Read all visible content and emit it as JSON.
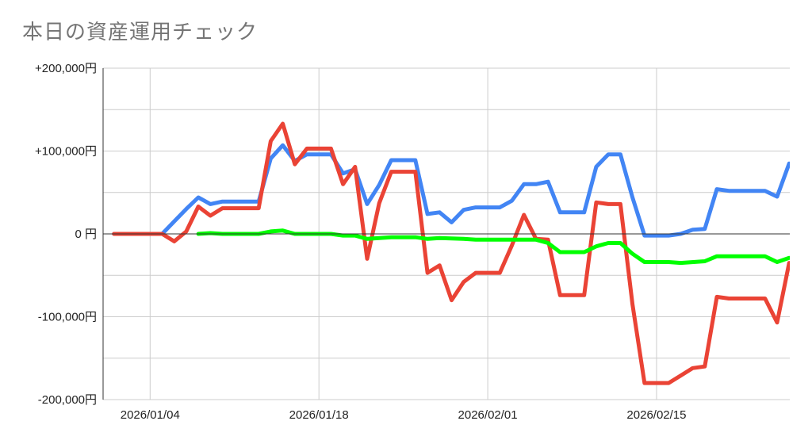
{
  "title": "本日の資産運用チェック",
  "chart_data": {
    "type": "line",
    "title": "本日の資産運用チェック",
    "xlabel": "",
    "ylabel": "",
    "x_start": "2026-01-01",
    "x_end": "2026-02-25",
    "x_ticks": [
      {
        "date": "2026-01-04",
        "label": "2026/01/04"
      },
      {
        "date": "2026-01-18",
        "label": "2026/01/18"
      },
      {
        "date": "2026-02-01",
        "label": "2026/02/01"
      },
      {
        "date": "2026-02-15",
        "label": "2026/02/15"
      }
    ],
    "ylim": [
      -200000,
      200000
    ],
    "y_ticks": [
      {
        "value": 200000,
        "label": "+200,000円"
      },
      {
        "value": 100000,
        "label": "+100,000円"
      },
      {
        "value": 0,
        "label": "0 円"
      },
      {
        "value": -100000,
        "label": "-100,000円"
      },
      {
        "value": -200000,
        "label": "-200,000円"
      }
    ],
    "grid": true,
    "series": [
      {
        "color": "#4285f4",
        "points": [
          [
            "2026-01-01",
            0
          ],
          [
            "2026-01-05",
            0
          ],
          [
            "2026-01-06",
            15000
          ],
          [
            "2026-01-07",
            30000
          ],
          [
            "2026-01-08",
            44000
          ],
          [
            "2026-01-09",
            36000
          ],
          [
            "2026-01-10",
            39000
          ],
          [
            "2026-01-13",
            39000
          ],
          [
            "2026-01-14",
            91000
          ],
          [
            "2026-01-15",
            107000
          ],
          [
            "2026-01-16",
            88000
          ],
          [
            "2026-01-17",
            96000
          ],
          [
            "2026-01-19",
            96000
          ],
          [
            "2026-01-20",
            73000
          ],
          [
            "2026-01-21",
            78000
          ],
          [
            "2026-01-22",
            36000
          ],
          [
            "2026-01-23",
            59000
          ],
          [
            "2026-01-24",
            89000
          ],
          [
            "2026-01-26",
            89000
          ],
          [
            "2026-01-27",
            24000
          ],
          [
            "2026-01-28",
            26000
          ],
          [
            "2026-01-29",
            14000
          ],
          [
            "2026-01-30",
            29000
          ],
          [
            "2026-01-31",
            32000
          ],
          [
            "2026-02-02",
            32000
          ],
          [
            "2026-02-03",
            40000
          ],
          [
            "2026-02-04",
            60000
          ],
          [
            "2026-02-05",
            60000
          ],
          [
            "2026-02-06",
            63000
          ],
          [
            "2026-02-07",
            26000
          ],
          [
            "2026-02-09",
            26000
          ],
          [
            "2026-02-10",
            81000
          ],
          [
            "2026-02-11",
            96000
          ],
          [
            "2026-02-12",
            96000
          ],
          [
            "2026-02-13",
            44000
          ],
          [
            "2026-02-14",
            -2000
          ],
          [
            "2026-02-16",
            -2000
          ],
          [
            "2026-02-17",
            0
          ],
          [
            "2026-02-18",
            5000
          ],
          [
            "2026-02-19",
            6000
          ],
          [
            "2026-02-20",
            54000
          ],
          [
            "2026-02-21",
            52000
          ],
          [
            "2026-02-24",
            52000
          ],
          [
            "2026-02-25",
            45000
          ],
          [
            "2026-02-26",
            85000
          ]
        ]
      },
      {
        "color": "#ea4335",
        "points": [
          [
            "2026-01-01",
            0
          ],
          [
            "2026-01-05",
            0
          ],
          [
            "2026-01-06",
            -9000
          ],
          [
            "2026-01-07",
            3000
          ],
          [
            "2026-01-08",
            33000
          ],
          [
            "2026-01-09",
            22000
          ],
          [
            "2026-01-10",
            31000
          ],
          [
            "2026-01-13",
            31000
          ],
          [
            "2026-01-14",
            112000
          ],
          [
            "2026-01-15",
            133000
          ],
          [
            "2026-01-16",
            84000
          ],
          [
            "2026-01-17",
            103000
          ],
          [
            "2026-01-19",
            103000
          ],
          [
            "2026-01-20",
            60000
          ],
          [
            "2026-01-21",
            81000
          ],
          [
            "2026-01-22",
            -30000
          ],
          [
            "2026-01-23",
            37000
          ],
          [
            "2026-01-24",
            75000
          ],
          [
            "2026-01-26",
            75000
          ],
          [
            "2026-01-27",
            -47000
          ],
          [
            "2026-01-28",
            -38000
          ],
          [
            "2026-01-29",
            -80000
          ],
          [
            "2026-01-30",
            -58000
          ],
          [
            "2026-01-31",
            -47000
          ],
          [
            "2026-02-02",
            -47000
          ],
          [
            "2026-02-03",
            -14000
          ],
          [
            "2026-02-04",
            23000
          ],
          [
            "2026-02-05",
            -6000
          ],
          [
            "2026-02-06",
            -7000
          ],
          [
            "2026-02-07",
            -74000
          ],
          [
            "2026-02-09",
            -74000
          ],
          [
            "2026-02-10",
            38000
          ],
          [
            "2026-02-11",
            36000
          ],
          [
            "2026-02-12",
            36000
          ],
          [
            "2026-02-13",
            -85000
          ],
          [
            "2026-02-14",
            -180000
          ],
          [
            "2026-02-16",
            -180000
          ],
          [
            "2026-02-17",
            -171000
          ],
          [
            "2026-02-18",
            -162000
          ],
          [
            "2026-02-19",
            -160000
          ],
          [
            "2026-02-20",
            -76000
          ],
          [
            "2026-02-21",
            -78000
          ],
          [
            "2026-02-24",
            -78000
          ],
          [
            "2026-02-25",
            -107000
          ],
          [
            "2026-02-26",
            -35000
          ]
        ]
      },
      {
        "color": "#00ff00",
        "points": [
          [
            "2026-01-08",
            0
          ],
          [
            "2026-01-09",
            1000
          ],
          [
            "2026-01-10",
            0
          ],
          [
            "2026-01-13",
            0
          ],
          [
            "2026-01-14",
            3000
          ],
          [
            "2026-01-15",
            4000
          ],
          [
            "2026-01-16",
            0
          ],
          [
            "2026-01-19",
            0
          ],
          [
            "2026-01-20",
            -2000
          ],
          [
            "2026-01-21",
            -2000
          ],
          [
            "2026-01-22",
            -6000
          ],
          [
            "2026-01-23",
            -5000
          ],
          [
            "2026-01-24",
            -4000
          ],
          [
            "2026-01-26",
            -4000
          ],
          [
            "2026-01-27",
            -6000
          ],
          [
            "2026-01-28",
            -5000
          ],
          [
            "2026-01-30",
            -6000
          ],
          [
            "2026-01-31",
            -7000
          ],
          [
            "2026-02-05",
            -7000
          ],
          [
            "2026-02-06",
            -11000
          ],
          [
            "2026-02-07",
            -22000
          ],
          [
            "2026-02-09",
            -22000
          ],
          [
            "2026-02-10",
            -15000
          ],
          [
            "2026-02-11",
            -11000
          ],
          [
            "2026-02-12",
            -11000
          ],
          [
            "2026-02-13",
            -24000
          ],
          [
            "2026-02-14",
            -34000
          ],
          [
            "2026-02-16",
            -34000
          ],
          [
            "2026-02-17",
            -35000
          ],
          [
            "2026-02-19",
            -33000
          ],
          [
            "2026-02-20",
            -27000
          ],
          [
            "2026-02-24",
            -27000
          ],
          [
            "2026-02-25",
            -34000
          ],
          [
            "2026-02-26",
            -29000
          ]
        ]
      }
    ]
  }
}
